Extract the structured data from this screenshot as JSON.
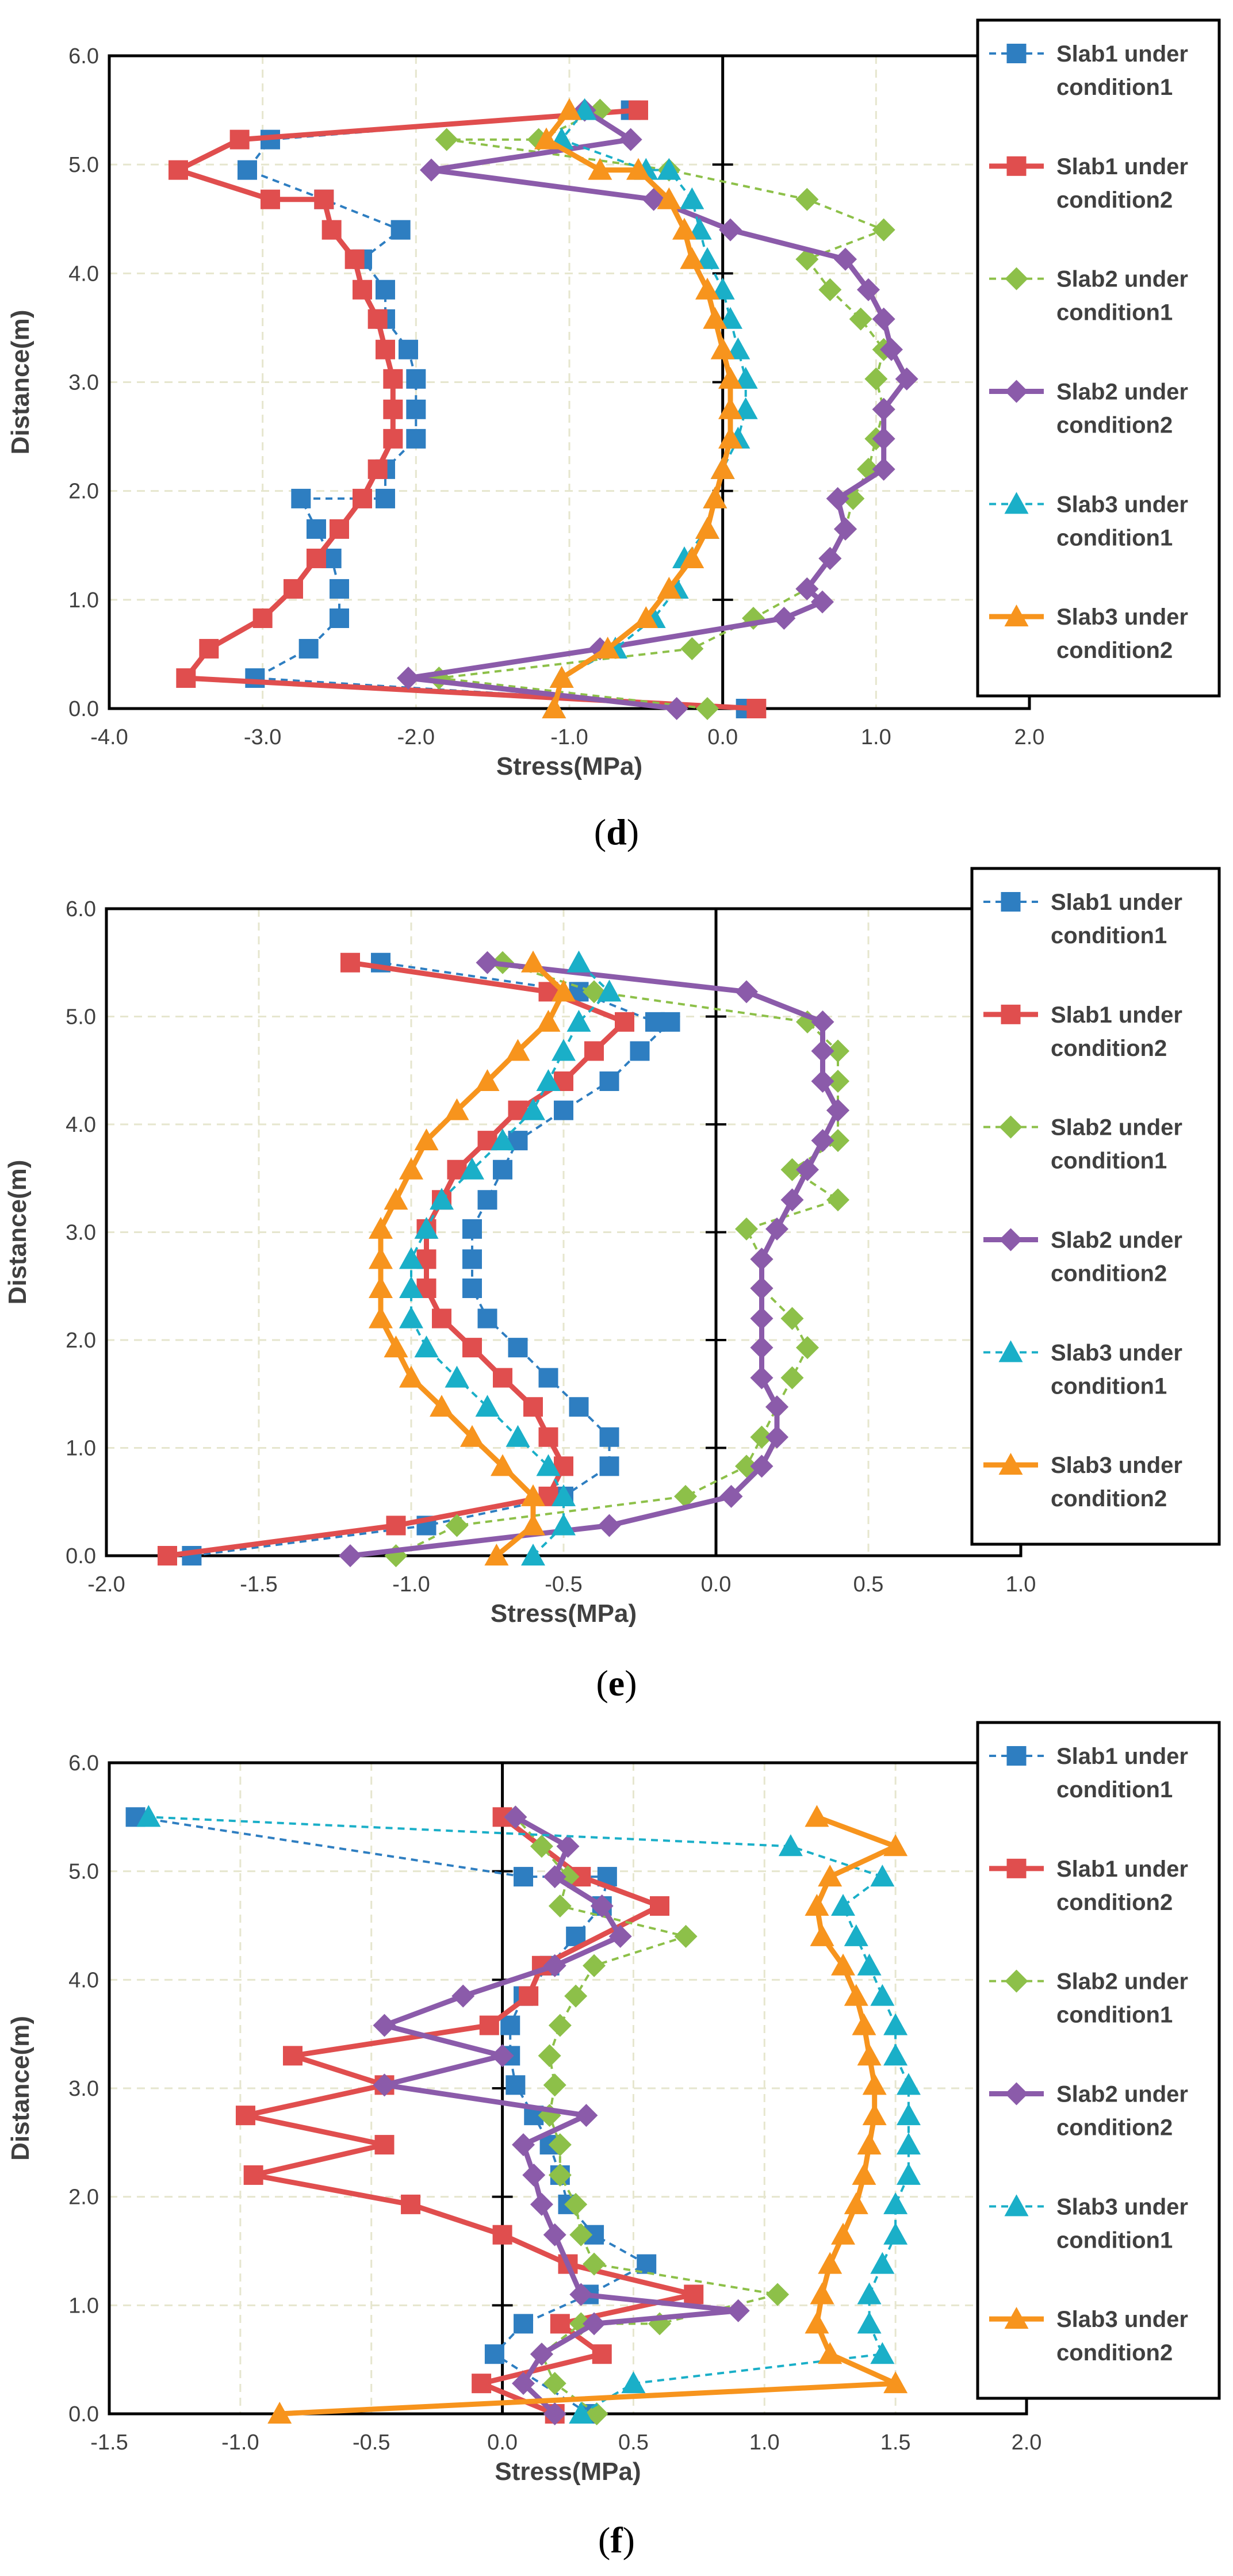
{
  "series_styles": [
    {
      "key": "s1c1",
      "color": "#2E7EC1",
      "marker": "square",
      "dashed": true
    },
    {
      "key": "s1c2",
      "color": "#E04E4E",
      "marker": "square",
      "dashed": false
    },
    {
      "key": "s2c1",
      "color": "#8DC049",
      "marker": "diamond",
      "dashed": true
    },
    {
      "key": "s2c2",
      "color": "#8B5BAA",
      "marker": "diamond",
      "dashed": false
    },
    {
      "key": "s3c1",
      "color": "#1AAFC8",
      "marker": "triangle",
      "dashed": true
    },
    {
      "key": "s3c2",
      "color": "#F7941D",
      "marker": "triangle",
      "dashed": false
    }
  ],
  "chart_data": [
    {
      "type": "line",
      "caption": {
        "open": "(",
        "letter": "d",
        "close": ")"
      },
      "xlabel": "Stress(MPa)",
      "ylabel": "Distance(m)",
      "xlim": [
        -4.0,
        2.0
      ],
      "ylim": [
        0.0,
        6.0
      ],
      "xticks": [
        "-4.0",
        "-3.0",
        "-2.0",
        "-1.0",
        "0.0",
        "1.0",
        "2.0"
      ],
      "yticks": [
        "0.0",
        "1.0",
        "2.0",
        "3.0",
        "4.0",
        "5.0",
        "6.0"
      ],
      "series": [
        {
          "name": "Slab1 under condition1",
          "x": [
            0.15,
            -3.05,
            -2.7,
            -2.5,
            -2.5,
            -2.55,
            -2.65,
            -2.75,
            -2.2,
            -2.2,
            -2.0,
            -2.0,
            -2.0,
            -2.05,
            -2.2,
            -2.2,
            -2.35,
            -2.1,
            -2.6,
            -3.1,
            -2.95,
            -0.6
          ],
          "y": [
            0.0,
            0.28,
            0.55,
            0.83,
            1.1,
            1.38,
            1.65,
            1.93,
            1.93,
            2.2,
            2.48,
            2.75,
            3.03,
            3.3,
            3.58,
            3.85,
            4.13,
            4.4,
            4.68,
            4.95,
            5.23,
            5.5
          ]
        },
        {
          "name": "Slab1 under condition2",
          "x": [
            0.22,
            -3.5,
            -3.35,
            -3.0,
            -2.8,
            -2.65,
            -2.5,
            -2.35,
            -2.25,
            -2.15,
            -2.15,
            -2.15,
            -2.2,
            -2.25,
            -2.35,
            -2.4,
            -2.55,
            -2.6,
            -2.95,
            -3.55,
            -3.15,
            -0.55
          ],
          "y": [
            0.0,
            0.28,
            0.55,
            0.83,
            1.1,
            1.38,
            1.65,
            1.93,
            2.2,
            2.48,
            2.75,
            3.03,
            3.3,
            3.58,
            3.85,
            4.13,
            4.4,
            4.68,
            4.68,
            4.95,
            5.23,
            5.5
          ]
        },
        {
          "name": "Slab2 under condition1",
          "x": [
            -0.1,
            -1.85,
            -0.2,
            0.2,
            0.55,
            0.7,
            0.8,
            0.85,
            0.95,
            1.0,
            1.05,
            1.0,
            1.05,
            0.9,
            0.7,
            0.55,
            1.05,
            0.55,
            -0.35,
            -1.8,
            -1.2,
            -0.8
          ],
          "y": [
            0.0,
            0.28,
            0.55,
            0.83,
            1.1,
            1.38,
            1.65,
            1.93,
            2.2,
            2.48,
            2.75,
            3.03,
            3.3,
            3.58,
            3.85,
            4.13,
            4.4,
            4.68,
            4.95,
            5.23,
            5.23,
            5.5
          ]
        },
        {
          "name": "Slab2 under condition2",
          "x": [
            -0.3,
            -2.05,
            -0.8,
            0.4,
            0.65,
            0.55,
            0.7,
            0.8,
            0.75,
            1.05,
            1.05,
            1.05,
            1.2,
            1.1,
            1.05,
            0.95,
            0.8,
            0.05,
            -0.45,
            -1.9,
            -0.6,
            -0.9
          ],
          "y": [
            0.0,
            0.28,
            0.55,
            0.83,
            0.98,
            1.1,
            1.38,
            1.65,
            1.93,
            2.2,
            2.48,
            2.75,
            3.03,
            3.3,
            3.58,
            3.85,
            4.13,
            4.4,
            4.68,
            4.95,
            5.23,
            5.5
          ]
        },
        {
          "name": "Slab3 under condition1",
          "x": [
            -1.1,
            -1.05,
            -0.7,
            -0.45,
            -0.3,
            -0.25,
            -0.1,
            -0.05,
            0.0,
            0.1,
            0.15,
            0.15,
            0.1,
            0.05,
            0.0,
            -0.1,
            -0.15,
            -0.2,
            -0.35,
            -0.5,
            -1.05,
            -0.9
          ],
          "y": [
            0.0,
            0.28,
            0.55,
            0.83,
            1.1,
            1.38,
            1.65,
            1.93,
            2.2,
            2.48,
            2.75,
            3.03,
            3.3,
            3.58,
            3.85,
            4.13,
            4.4,
            4.68,
            4.95,
            4.95,
            5.23,
            5.5
          ]
        },
        {
          "name": "Slab3 under condition2",
          "x": [
            -1.1,
            -1.05,
            -0.75,
            -0.5,
            -0.35,
            -0.2,
            -0.1,
            -0.05,
            0.0,
            0.05,
            0.05,
            0.05,
            0.0,
            -0.05,
            -0.1,
            -0.2,
            -0.25,
            -0.35,
            -0.55,
            -0.8,
            -1.15,
            -1.0
          ],
          "y": [
            0.0,
            0.28,
            0.55,
            0.83,
            1.1,
            1.38,
            1.65,
            1.93,
            2.2,
            2.48,
            2.75,
            3.03,
            3.3,
            3.58,
            3.85,
            4.13,
            4.4,
            4.68,
            4.95,
            4.95,
            5.23,
            5.5
          ]
        }
      ]
    },
    {
      "type": "line",
      "caption": {
        "open": "(",
        "letter": "e",
        "close": ")"
      },
      "xlabel": "Stress(MPa)",
      "ylabel": "Distance(m)",
      "xlim": [
        -2.0,
        1.0
      ],
      "ylim": [
        0.0,
        6.0
      ],
      "xticks": [
        "-2.0",
        "-1.5",
        "-1.0",
        "-0.5",
        "0.0",
        "0.5",
        "1.0"
      ],
      "yticks": [
        "0.0",
        "1.0",
        "2.0",
        "3.0",
        "4.0",
        "5.0",
        "6.0"
      ],
      "series": [
        {
          "name": "Slab1 under condition1",
          "x": [
            -1.72,
            -0.95,
            -0.5,
            -0.35,
            -0.35,
            -0.45,
            -0.55,
            -0.65,
            -0.75,
            -0.8,
            -0.8,
            -0.8,
            -0.75,
            -0.7,
            -0.65,
            -0.5,
            -0.35,
            -0.25,
            -0.15,
            -0.2,
            -0.45,
            -1.1
          ],
          "y": [
            0.0,
            0.28,
            0.55,
            0.83,
            1.1,
            1.38,
            1.65,
            1.93,
            2.2,
            2.48,
            2.75,
            3.03,
            3.3,
            3.58,
            3.85,
            4.13,
            4.4,
            4.68,
            4.95,
            4.95,
            5.23,
            5.5
          ]
        },
        {
          "name": "Slab1 under condition2",
          "x": [
            -1.8,
            -1.05,
            -0.55,
            -0.5,
            -0.55,
            -0.6,
            -0.7,
            -0.8,
            -0.9,
            -0.95,
            -0.95,
            -0.95,
            -0.9,
            -0.85,
            -0.75,
            -0.65,
            -0.5,
            -0.4,
            -0.3,
            -0.55,
            -1.2
          ],
          "y": [
            0.0,
            0.28,
            0.55,
            0.83,
            1.1,
            1.38,
            1.65,
            1.93,
            2.2,
            2.48,
            2.75,
            3.03,
            3.3,
            3.58,
            3.85,
            4.13,
            4.4,
            4.68,
            4.95,
            5.23,
            5.5
          ]
        },
        {
          "name": "Slab2 under condition1",
          "x": [
            -1.05,
            -0.85,
            -0.1,
            0.1,
            0.15,
            0.2,
            0.25,
            0.3,
            0.25,
            0.15,
            0.15,
            0.1,
            0.4,
            0.25,
            0.4,
            0.4,
            0.4,
            0.4,
            0.3,
            -0.4,
            -0.7
          ],
          "y": [
            0.0,
            0.28,
            0.55,
            0.83,
            1.1,
            1.38,
            1.65,
            1.93,
            2.2,
            2.48,
            2.75,
            3.03,
            3.3,
            3.58,
            3.85,
            4.13,
            4.4,
            4.68,
            4.95,
            5.23,
            5.5
          ]
        },
        {
          "name": "Slab2 under condition2",
          "x": [
            -1.2,
            -0.35,
            0.05,
            0.15,
            0.2,
            0.2,
            0.15,
            0.15,
            0.15,
            0.15,
            0.15,
            0.2,
            0.25,
            0.3,
            0.35,
            0.4,
            0.35,
            0.35,
            0.35,
            0.1,
            -0.75
          ],
          "y": [
            0.0,
            0.28,
            0.55,
            0.83,
            1.1,
            1.38,
            1.65,
            1.93,
            2.2,
            2.48,
            2.75,
            3.03,
            3.3,
            3.58,
            3.85,
            4.13,
            4.4,
            4.68,
            4.95,
            5.23,
            5.5
          ]
        },
        {
          "name": "Slab3 under condition1",
          "x": [
            -0.6,
            -0.5,
            -0.5,
            -0.55,
            -0.65,
            -0.75,
            -0.85,
            -0.95,
            -1.0,
            -1.0,
            -1.0,
            -0.95,
            -0.9,
            -0.8,
            -0.7,
            -0.6,
            -0.55,
            -0.5,
            -0.45,
            -0.35,
            -0.45
          ],
          "y": [
            0.0,
            0.28,
            0.55,
            0.83,
            1.1,
            1.38,
            1.65,
            1.93,
            2.2,
            2.48,
            2.75,
            3.03,
            3.3,
            3.58,
            3.85,
            4.13,
            4.4,
            4.68,
            4.95,
            5.23,
            5.5
          ]
        },
        {
          "name": "Slab3 under condition2",
          "x": [
            -0.72,
            -0.6,
            -0.6,
            -0.7,
            -0.8,
            -0.9,
            -1.0,
            -1.05,
            -1.1,
            -1.1,
            -1.1,
            -1.1,
            -1.05,
            -1.0,
            -0.95,
            -0.85,
            -0.75,
            -0.65,
            -0.55,
            -0.5,
            -0.6
          ],
          "y": [
            0.0,
            0.28,
            0.55,
            0.83,
            1.1,
            1.38,
            1.65,
            1.93,
            2.2,
            2.48,
            2.75,
            3.03,
            3.3,
            3.58,
            3.85,
            4.13,
            4.4,
            4.68,
            4.95,
            5.23,
            5.5
          ]
        }
      ]
    },
    {
      "type": "line",
      "caption": {
        "open": "(",
        "letter": "f",
        "close": ")"
      },
      "xlabel": "Stress(MPa)",
      "ylabel": "Distance(m)",
      "xlim": [
        -1.5,
        2.0
      ],
      "ylim": [
        0.0,
        6.0
      ],
      "xticks": [
        "-1.5",
        "-1.0",
        "-0.5",
        "0.0",
        "0.5",
        "1.0",
        "1.5",
        "2.0"
      ],
      "yticks": [
        "0.0",
        "1.0",
        "2.0",
        "3.0",
        "4.0",
        "5.0",
        "6.0"
      ],
      "series": [
        {
          "name": "Slab1 under condition1",
          "x": [
            0.33,
            -0.03,
            0.08,
            0.33,
            0.55,
            0.35,
            0.25,
            0.22,
            0.18,
            0.12,
            0.05,
            0.03,
            0.03,
            0.08,
            0.18,
            0.28,
            0.38,
            0.4,
            0.08,
            -1.4
          ],
          "y": [
            0.0,
            0.55,
            0.83,
            1.1,
            1.38,
            1.65,
            1.93,
            2.2,
            2.48,
            2.75,
            3.03,
            3.3,
            3.58,
            3.85,
            4.13,
            4.4,
            4.68,
            4.95,
            4.95,
            5.5
          ]
        },
        {
          "name": "Slab1 under condition2",
          "x": [
            0.2,
            -0.08,
            0.38,
            0.22,
            0.73,
            0.25,
            0.0,
            -0.35,
            -0.95,
            -0.45,
            -0.98,
            -0.45,
            -0.8,
            -0.05,
            0.1,
            0.15,
            0.6,
            0.3,
            0.0
          ],
          "y": [
            0.0,
            0.28,
            0.55,
            0.83,
            1.1,
            1.38,
            1.65,
            1.93,
            2.2,
            2.48,
            2.75,
            3.03,
            3.3,
            3.58,
            3.85,
            4.13,
            4.68,
            4.95,
            5.5
          ]
        },
        {
          "name": "Slab2 under condition1",
          "x": [
            0.36,
            0.2,
            0.15,
            0.3,
            0.6,
            1.05,
            0.35,
            0.3,
            0.28,
            0.22,
            0.22,
            0.18,
            0.2,
            0.18,
            0.22,
            0.28,
            0.35,
            0.7,
            0.22,
            0.25,
            0.15,
            0.05
          ],
          "y": [
            0.0,
            0.28,
            0.55,
            0.83,
            0.83,
            1.1,
            1.38,
            1.65,
            1.93,
            2.2,
            2.48,
            2.75,
            3.03,
            3.3,
            3.58,
            3.85,
            4.13,
            4.4,
            4.68,
            4.95,
            5.23,
            5.5
          ]
        },
        {
          "name": "Slab2 under condition2",
          "x": [
            0.2,
            0.08,
            0.15,
            0.35,
            0.9,
            0.3,
            0.2,
            0.15,
            0.12,
            0.08,
            0.32,
            -0.45,
            0.0,
            -0.45,
            -0.15,
            0.2,
            0.45,
            0.38,
            0.2,
            0.25,
            0.05
          ],
          "y": [
            0.0,
            0.28,
            0.55,
            0.83,
            0.95,
            1.1,
            1.65,
            1.93,
            2.2,
            2.48,
            2.75,
            3.03,
            3.3,
            3.58,
            3.85,
            4.13,
            4.4,
            4.68,
            4.95,
            5.23,
            5.5
          ]
        },
        {
          "name": "Slab3 under condition1",
          "x": [
            0.3,
            0.5,
            1.45,
            1.4,
            1.4,
            1.45,
            1.5,
            1.5,
            1.55,
            1.55,
            1.55,
            1.55,
            1.5,
            1.5,
            1.45,
            1.4,
            1.35,
            1.3,
            1.45,
            1.1,
            -1.35
          ],
          "y": [
            0.0,
            0.28,
            0.55,
            0.83,
            1.1,
            1.38,
            1.65,
            1.93,
            2.2,
            2.48,
            2.75,
            3.03,
            3.3,
            3.58,
            3.85,
            4.13,
            4.4,
            4.68,
            4.95,
            5.23,
            5.5
          ]
        },
        {
          "name": "Slab3 under condition2",
          "x": [
            -0.85,
            1.5,
            1.25,
            1.2,
            1.22,
            1.25,
            1.3,
            1.35,
            1.38,
            1.4,
            1.42,
            1.42,
            1.4,
            1.38,
            1.35,
            1.3,
            1.22,
            1.2,
            1.25,
            1.5,
            1.2
          ],
          "y": [
            0.0,
            0.28,
            0.55,
            0.83,
            1.1,
            1.38,
            1.65,
            1.93,
            2.2,
            2.48,
            2.75,
            3.03,
            3.3,
            3.58,
            3.85,
            4.13,
            4.4,
            4.68,
            4.95,
            5.23,
            5.5
          ]
        }
      ]
    }
  ]
}
